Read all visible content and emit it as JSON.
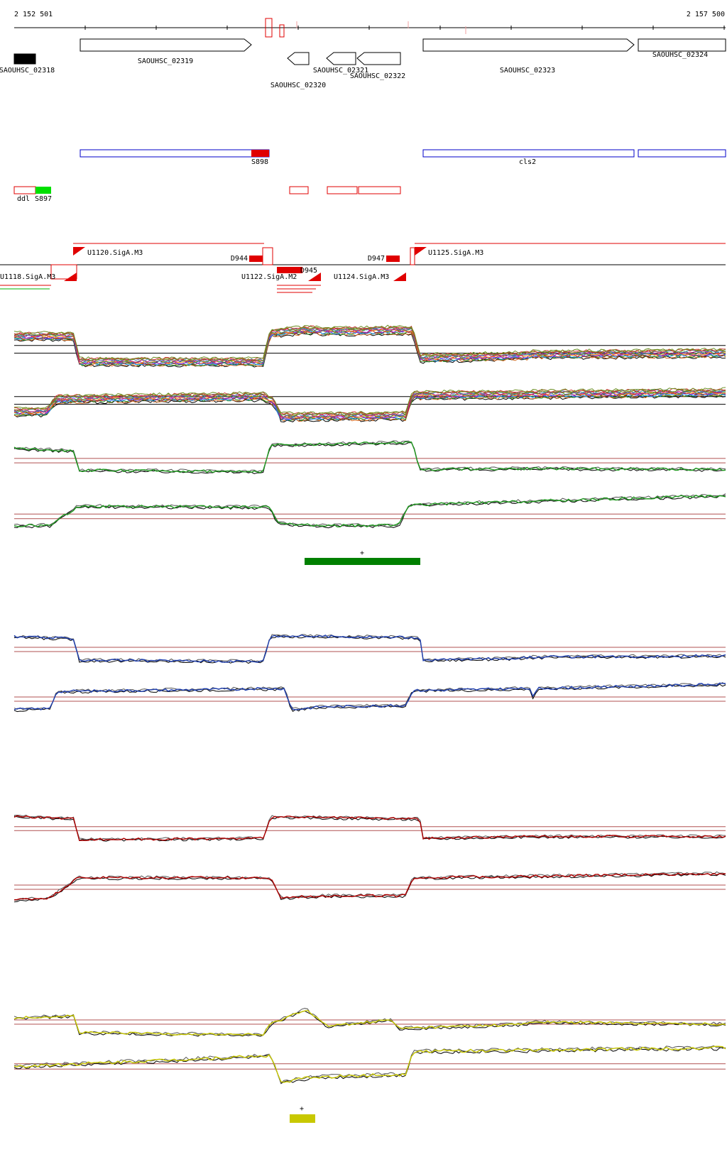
{
  "ruler": {
    "start_label": "2 152 501",
    "end_label": "2 157 500"
  },
  "genes": [
    {
      "id": "g0",
      "label": "SAOUHSC_02318",
      "strand": "+",
      "filled": true
    },
    {
      "id": "g1",
      "label": "SAOUHSC_02319",
      "strand": "+",
      "filled": false
    },
    {
      "id": "g2",
      "label": "SAOUHSC_02320",
      "strand": "-",
      "filled": false
    },
    {
      "id": "g3",
      "label": "SAOUHSC_02321",
      "strand": "-",
      "filled": false
    },
    {
      "id": "g4",
      "label": "SAOUHSC_02322",
      "strand": "-",
      "filled": false
    },
    {
      "id": "g5",
      "label": "SAOUHSC_02323",
      "strand": "+",
      "filled": false
    },
    {
      "id": "g6",
      "label": "SAOUHSC_02324",
      "strand": "+",
      "filled": false
    }
  ],
  "blue_features": [
    {
      "id": "b0",
      "label": "S898"
    },
    {
      "id": "b1",
      "label": "cls2"
    },
    {
      "id": "b2",
      "label": ""
    }
  ],
  "red_features": [
    {
      "id": "r0",
      "label": "ddl"
    },
    {
      "id": "r1",
      "label": "S897"
    },
    {
      "id": "r2",
      "label": ""
    },
    {
      "id": "r3",
      "label": ""
    },
    {
      "id": "r4",
      "label": ""
    }
  ],
  "promoter_labels": [
    {
      "id": "p0",
      "label": "U1120.SigA.M3"
    },
    {
      "id": "p1",
      "label": "D944"
    },
    {
      "id": "p2",
      "label": "D947"
    },
    {
      "id": "p3",
      "label": "U1125.SigA.M3"
    },
    {
      "id": "p4",
      "label": "U1124.SigA.M3"
    },
    {
      "id": "p5",
      "label": "U1122.SigA.M2"
    },
    {
      "id": "p6",
      "label": "D945"
    },
    {
      "id": "p7",
      "label": "U1118.SigA.M3"
    }
  ],
  "segment_marks": [
    {
      "id": "m0",
      "label": "+",
      "color": "#008000"
    },
    {
      "id": "m1",
      "label": "+",
      "color": "#c8c800"
    }
  ],
  "colors": {
    "gene_outline": "#000000",
    "blue_feature": "#0000c8",
    "red_feature": "#e00000",
    "green_feature": "#00e000",
    "track_green": "#1f9a1f",
    "track_blue": "#1f3fb0",
    "track_red": "#b00000",
    "track_yellow": "#c8c800",
    "threshold": "#b05050"
  },
  "chart_data": {
    "type": "line",
    "title": "",
    "x_range": [
      2152501,
      2157500
    ],
    "tracks": [
      {
        "name": "",
        "strand": "+",
        "color": "multi",
        "levels": [
          [
            0,
            0.78
          ],
          [
            0.085,
            0.78
          ],
          [
            0.09,
            0.28
          ],
          [
            0.35,
            0.28
          ],
          [
            0.36,
            0.85
          ],
          [
            0.415,
            0.9
          ],
          [
            0.45,
            0.88
          ],
          [
            0.54,
            0.9
          ],
          [
            0.56,
            0.9
          ],
          [
            0.57,
            0.35
          ],
          [
            0.72,
            0.4
          ],
          [
            0.725,
            0.42
          ],
          [
            1,
            0.45
          ]
        ]
      },
      {
        "name": "",
        "strand": "-",
        "color": "multi",
        "levels": [
          [
            0,
            0.3
          ],
          [
            0.045,
            0.3
          ],
          [
            0.06,
            0.55
          ],
          [
            0.35,
            0.6
          ],
          [
            0.365,
            0.5
          ],
          [
            0.375,
            0.2
          ],
          [
            0.55,
            0.22
          ],
          [
            0.56,
            0.62
          ],
          [
            1,
            0.68
          ]
        ]
      },
      {
        "name": "",
        "strand": "+",
        "color": "#1f9a1f",
        "levels": [
          [
            0,
            0.78
          ],
          [
            0.085,
            0.72
          ],
          [
            0.09,
            0.28
          ],
          [
            0.35,
            0.25
          ],
          [
            0.36,
            0.85
          ],
          [
            0.56,
            0.92
          ],
          [
            0.57,
            0.3
          ],
          [
            0.72,
            0.32
          ],
          [
            0.725,
            0.32
          ],
          [
            1,
            0.3
          ]
        ]
      },
      {
        "name": "",
        "strand": "-",
        "color": "#1f9a1f",
        "levels": [
          [
            0,
            0.3
          ],
          [
            0.05,
            0.3
          ],
          [
            0.09,
            0.72
          ],
          [
            0.36,
            0.7
          ],
          [
            0.37,
            0.35
          ],
          [
            0.42,
            0.3
          ],
          [
            0.54,
            0.3
          ],
          [
            0.555,
            0.75
          ],
          [
            1,
            0.95
          ]
        ]
      },
      {
        "name": "",
        "strand": "+",
        "color": "#1f3fb0",
        "levels": [
          [
            0,
            0.8
          ],
          [
            0.085,
            0.75
          ],
          [
            0.09,
            0.25
          ],
          [
            0.35,
            0.22
          ],
          [
            0.36,
            0.82
          ],
          [
            0.57,
            0.78
          ],
          [
            0.575,
            0.25
          ],
          [
            0.72,
            0.3
          ],
          [
            0.725,
            0.32
          ],
          [
            1,
            0.35
          ]
        ]
      },
      {
        "name": "",
        "strand": "-",
        "color": "#1f3fb0",
        "levels": [
          [
            0,
            0.25
          ],
          [
            0.05,
            0.28
          ],
          [
            0.06,
            0.68
          ],
          [
            0.38,
            0.75
          ],
          [
            0.39,
            0.25
          ],
          [
            0.43,
            0.32
          ],
          [
            0.55,
            0.35
          ],
          [
            0.56,
            0.7
          ],
          [
            0.725,
            0.75
          ],
          [
            0.73,
            0.5
          ],
          [
            0.735,
            0.75
          ],
          [
            1,
            0.85
          ]
        ]
      },
      {
        "name": "",
        "strand": "+",
        "color": "#b00000",
        "levels": [
          [
            0,
            0.82
          ],
          [
            0.085,
            0.75
          ],
          [
            0.09,
            0.22
          ],
          [
            0.35,
            0.25
          ],
          [
            0.36,
            0.8
          ],
          [
            0.57,
            0.75
          ],
          [
            0.575,
            0.25
          ],
          [
            0.72,
            0.3
          ],
          [
            0.725,
            0.3
          ],
          [
            1,
            0.3
          ]
        ]
      },
      {
        "name": "",
        "strand": "-",
        "color": "#b00000",
        "levels": [
          [
            0,
            0.2
          ],
          [
            0.05,
            0.25
          ],
          [
            0.09,
            0.72
          ],
          [
            0.36,
            0.72
          ],
          [
            0.375,
            0.25
          ],
          [
            0.43,
            0.3
          ],
          [
            0.55,
            0.3
          ],
          [
            0.56,
            0.72
          ],
          [
            1,
            0.82
          ]
        ]
      },
      {
        "name": "",
        "strand": "+",
        "color": "#c8c800",
        "levels": [
          [
            0,
            0.6
          ],
          [
            0.085,
            0.65
          ],
          [
            0.09,
            0.25
          ],
          [
            0.35,
            0.2
          ],
          [
            0.36,
            0.45
          ],
          [
            0.41,
            0.8
          ],
          [
            0.44,
            0.4
          ],
          [
            0.53,
            0.55
          ],
          [
            0.54,
            0.35
          ],
          [
            0.72,
            0.45
          ],
          [
            0.725,
            0.5
          ],
          [
            1,
            0.45
          ]
        ]
      },
      {
        "name": "",
        "strand": "-",
        "color": "#c8c800",
        "levels": [
          [
            0,
            0.5
          ],
          [
            0.1,
            0.55
          ],
          [
            0.36,
            0.7
          ],
          [
            0.375,
            0.2
          ],
          [
            0.42,
            0.3
          ],
          [
            0.55,
            0.35
          ],
          [
            0.56,
            0.78
          ],
          [
            1,
            0.85
          ]
        ]
      }
    ]
  }
}
